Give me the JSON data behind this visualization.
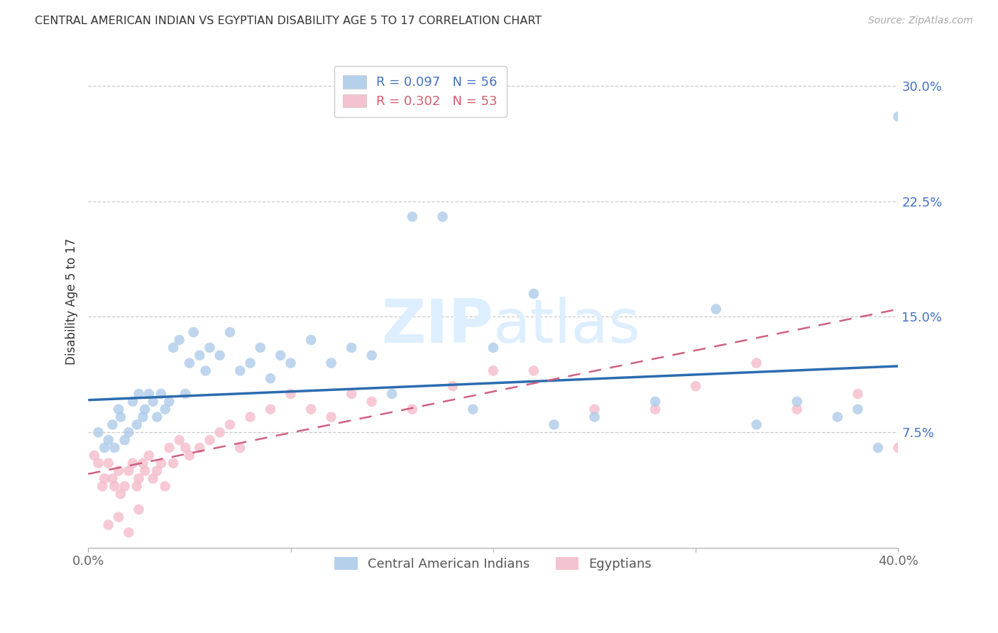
{
  "title": "CENTRAL AMERICAN INDIAN VS EGYPTIAN DISABILITY AGE 5 TO 17 CORRELATION CHART",
  "source": "Source: ZipAtlas.com",
  "ylabel": "Disability Age 5 to 17",
  "xlim": [
    0.0,
    0.4
  ],
  "ylim": [
    0.0,
    0.32
  ],
  "yticks": [
    0.075,
    0.15,
    0.225,
    0.3
  ],
  "ytick_labels": [
    "7.5%",
    "15.0%",
    "22.5%",
    "30.0%"
  ],
  "legend_r1": "R = 0.097",
  "legend_n1": "N = 56",
  "legend_r2": "R = 0.302",
  "legend_n2": "N = 53",
  "blue_color": "#a8c8e8",
  "pink_color": "#f4b8c8",
  "blue_line_color": "#2b6cb0",
  "pink_line_color": "#d06080",
  "watermark_color": "#ddeeff",
  "blue_line_x0": 0.0,
  "blue_line_y0": 0.096,
  "blue_line_x1": 0.4,
  "blue_line_y1": 0.118,
  "pink_line_x0": 0.0,
  "pink_line_y0": 0.048,
  "pink_line_x1": 0.4,
  "pink_line_y1": 0.155,
  "blue_scatter_x": [
    0.005,
    0.008,
    0.01,
    0.012,
    0.013,
    0.015,
    0.016,
    0.018,
    0.02,
    0.022,
    0.024,
    0.025,
    0.027,
    0.028,
    0.03,
    0.032,
    0.034,
    0.036,
    0.038,
    0.04,
    0.042,
    0.045,
    0.048,
    0.05,
    0.052,
    0.055,
    0.058,
    0.06,
    0.065,
    0.07,
    0.075,
    0.08,
    0.085,
    0.09,
    0.095,
    0.1,
    0.11,
    0.12,
    0.13,
    0.14,
    0.15,
    0.16,
    0.175,
    0.19,
    0.2,
    0.22,
    0.23,
    0.25,
    0.28,
    0.31,
    0.33,
    0.35,
    0.37,
    0.38,
    0.39,
    0.4
  ],
  "blue_scatter_y": [
    0.075,
    0.065,
    0.07,
    0.08,
    0.065,
    0.09,
    0.085,
    0.07,
    0.075,
    0.095,
    0.08,
    0.1,
    0.085,
    0.09,
    0.1,
    0.095,
    0.085,
    0.1,
    0.09,
    0.095,
    0.13,
    0.135,
    0.1,
    0.12,
    0.14,
    0.125,
    0.115,
    0.13,
    0.125,
    0.14,
    0.115,
    0.12,
    0.13,
    0.11,
    0.125,
    0.12,
    0.135,
    0.12,
    0.13,
    0.125,
    0.1,
    0.215,
    0.215,
    0.09,
    0.13,
    0.165,
    0.08,
    0.085,
    0.095,
    0.155,
    0.08,
    0.095,
    0.085,
    0.09,
    0.065,
    0.28
  ],
  "pink_scatter_x": [
    0.003,
    0.005,
    0.007,
    0.008,
    0.01,
    0.012,
    0.013,
    0.015,
    0.016,
    0.018,
    0.02,
    0.022,
    0.024,
    0.025,
    0.027,
    0.028,
    0.03,
    0.032,
    0.034,
    0.036,
    0.038,
    0.04,
    0.042,
    0.045,
    0.048,
    0.05,
    0.055,
    0.06,
    0.065,
    0.07,
    0.075,
    0.08,
    0.09,
    0.1,
    0.11,
    0.12,
    0.13,
    0.14,
    0.16,
    0.18,
    0.2,
    0.22,
    0.25,
    0.28,
    0.3,
    0.33,
    0.35,
    0.38,
    0.4,
    0.01,
    0.015,
    0.02,
    0.025
  ],
  "pink_scatter_y": [
    0.06,
    0.055,
    0.04,
    0.045,
    0.055,
    0.045,
    0.04,
    0.05,
    0.035,
    0.04,
    0.05,
    0.055,
    0.04,
    0.045,
    0.055,
    0.05,
    0.06,
    0.045,
    0.05,
    0.055,
    0.04,
    0.065,
    0.055,
    0.07,
    0.065,
    0.06,
    0.065,
    0.07,
    0.075,
    0.08,
    0.065,
    0.085,
    0.09,
    0.1,
    0.09,
    0.085,
    0.1,
    0.095,
    0.09,
    0.105,
    0.115,
    0.115,
    0.09,
    0.09,
    0.105,
    0.12,
    0.09,
    0.1,
    0.065,
    0.015,
    0.02,
    0.01,
    0.025
  ]
}
